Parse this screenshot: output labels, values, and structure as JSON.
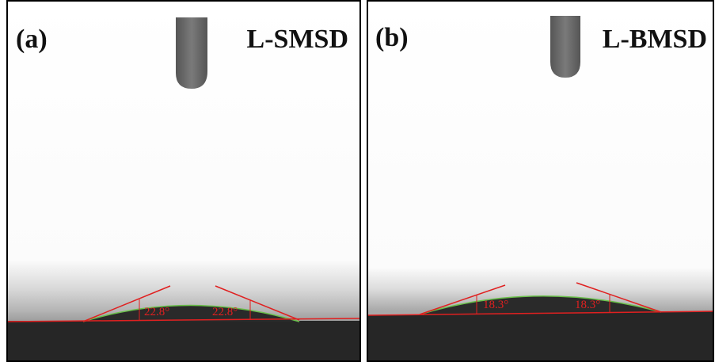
{
  "panels": [
    {
      "label": "(a)",
      "title": "L-SMSD",
      "angles": [
        "22.8°",
        "22.8°"
      ]
    },
    {
      "label": "(b)",
      "title": "L-BMSD",
      "angles": [
        "18.3°",
        "18.3°"
      ]
    }
  ]
}
